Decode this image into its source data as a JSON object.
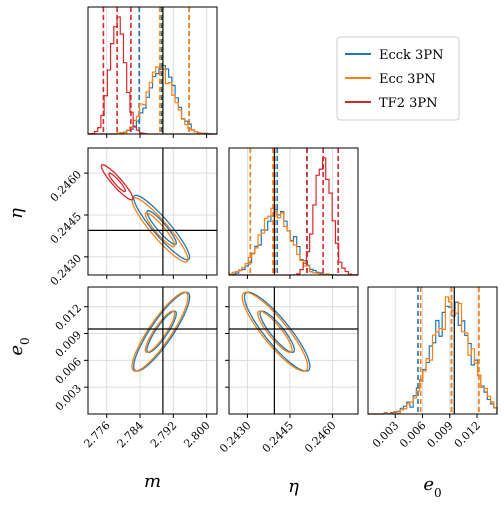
{
  "chart_data": {
    "type": "corner",
    "parameters": [
      {
        "label": "m",
        "range": [
          2.7715,
          2.8025
        ],
        "ticks": [
          2.776,
          2.784,
          2.792,
          2.8
        ],
        "tick_labels": [
          "2.776",
          "2.784",
          "2.792",
          "2.800"
        ],
        "truth": 2.7895
      },
      {
        "label": "η",
        "range": [
          0.24235,
          0.2469
        ],
        "ticks": [
          0.243,
          0.2445,
          0.246
        ],
        "tick_labels": [
          "0.2430",
          "0.2445",
          "0.2460"
        ],
        "truth": 0.24395
      },
      {
        "label": "e",
        "subscript": "0",
        "range": [
          0.0,
          0.0142
        ],
        "ticks": [
          0.003,
          0.006,
          0.009,
          0.012
        ],
        "tick_labels": [
          "0.003",
          "0.006",
          "0.009",
          "0.012"
        ],
        "truth": 0.0095
      }
    ],
    "series": [
      {
        "name": "Ecck 3PN",
        "color": "#1f77b4",
        "m": {
          "mean": 2.7892,
          "std": 0.0032,
          "q": [
            2.7838,
            2.7958
          ]
        },
        "eta": {
          "mean": 0.24405,
          "std": 0.00055,
          "q": [
            0.2431,
            0.2451
          ]
        },
        "e0": {
          "mean": 0.0092,
          "std": 0.0021,
          "q": [
            0.0055,
            0.0122
          ]
        }
      },
      {
        "name": "Ecc 3PN",
        "color": "#ff7f0e",
        "m": {
          "mean": 2.7888,
          "std": 0.0032,
          "q": [
            2.7888,
            2.7958
          ]
        },
        "eta": {
          "mean": 0.24397,
          "std": 0.00055,
          "q": [
            0.2431,
            0.2439
          ]
        },
        "e0": {
          "mean": 0.0092,
          "std": 0.0021,
          "q": [
            0.0058,
            0.0122
          ]
        }
      },
      {
        "name": "TF2 3PN",
        "color": "#d62728",
        "m": {
          "mean": 2.7785,
          "std": 0.0018,
          "q": [
            2.7752,
            2.7818
          ]
        },
        "eta": {
          "mean": 0.24567,
          "std": 0.0003,
          "q": [
            0.2451,
            0.2462
          ]
        },
        "e0": null
      }
    ],
    "grid": true,
    "legend_position": "top-right"
  }
}
